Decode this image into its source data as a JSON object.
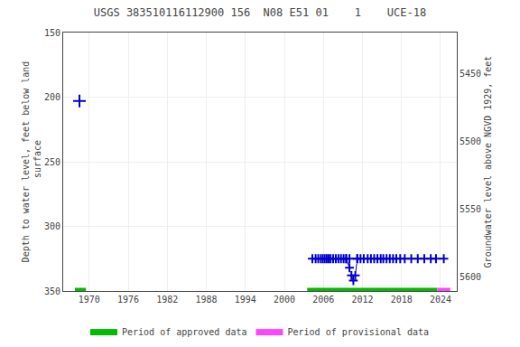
{
  "chart_data": {
    "type": "line",
    "title": "USGS 383510116112900 156  N08 E51 01    1    UCE-18",
    "ylabel": "Depth to water level, feet below land\n surface",
    "y2label": "Groundwater level above NGVD 1929, feet",
    "xlim": [
      1966.0,
      2026.5
    ],
    "xticks": [
      1970,
      1976,
      1982,
      1988,
      1994,
      2000,
      2006,
      2012,
      2018,
      2024
    ],
    "ylim": [
      350,
      150
    ],
    "yticks": [
      150,
      200,
      250,
      300,
      350
    ],
    "y2lim": [
      5610,
      5420
    ],
    "y2ticks": [
      5600,
      5550,
      5500,
      5450
    ],
    "grid": true,
    "legend": "bottom",
    "series": [
      {
        "type": "scatter",
        "marker": "plus",
        "color": "#0000cc",
        "x": [
          1968.5
        ],
        "values": [
          203
        ]
      },
      {
        "type": "line",
        "marker": "plus",
        "line_style": "solid",
        "color": "#0000cc",
        "x": [
          2004.3,
          2004.8,
          2005.2,
          2005.6,
          2005.9,
          2006.2,
          2006.5,
          2006.8,
          2007.1,
          2007.5,
          2007.9,
          2008.3,
          2008.7,
          2009.1,
          2009.5,
          2010.0,
          2011.2,
          2011.7,
          2012.2,
          2012.8,
          2013.3,
          2013.8,
          2014.3,
          2014.8,
          2015.2,
          2015.7,
          2016.2,
          2016.7,
          2017.2,
          2017.8,
          2018.5,
          2019.5,
          2020.5,
          2021.5,
          2022.5,
          2023.3,
          2024.5
        ],
        "values": [
          325,
          325,
          325,
          325,
          325,
          325,
          325,
          325,
          325,
          325,
          325,
          325,
          325,
          325,
          325,
          325,
          325,
          325,
          325,
          325,
          325,
          325,
          325,
          325,
          325,
          325,
          325,
          325,
          325,
          325,
          325,
          325,
          325,
          325,
          325,
          325,
          325
        ]
      },
      {
        "type": "line",
        "marker": "plus",
        "line_style": "dashed",
        "color": "#0000cc",
        "x": [
          2009.5,
          2010.0,
          2010.3,
          2010.6,
          2010.9,
          2011.2
        ],
        "values": [
          325,
          332,
          338,
          342,
          338,
          325
        ]
      },
      {
        "type": "period",
        "name": "Period of approved data",
        "color": "#00bb00",
        "periods": [
          [
            1967.8,
            1969.5
          ],
          [
            2003.5,
            2023.5
          ]
        ]
      },
      {
        "type": "period",
        "name": "Period of provisional data",
        "color": "#ff44ff",
        "periods": [
          [
            2023.5,
            2025.5
          ]
        ]
      }
    ]
  }
}
